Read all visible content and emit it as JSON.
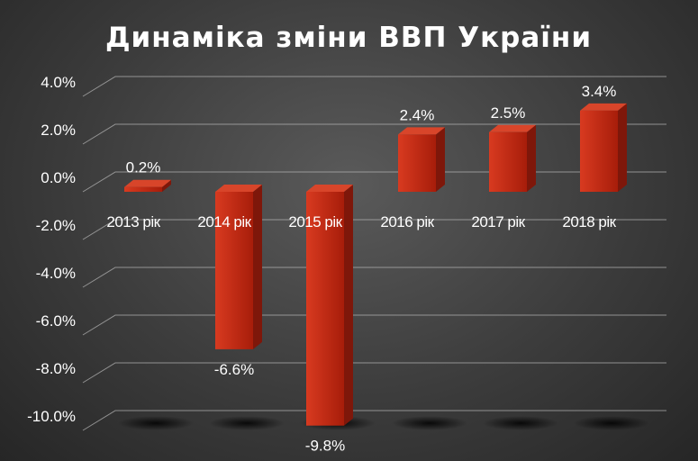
{
  "title": "Динаміка зміни ВВП України",
  "colors": {
    "bar_front": "#c0270f",
    "bar_side": "#7e170a",
    "bar_top": "#d8452a",
    "grid": "#b0b0b0",
    "text": "#ffffff"
  },
  "chart_data": {
    "type": "bar",
    "title": "Динаміка зміни ВВП України",
    "categories": [
      "2013 рік",
      "2014 рік",
      "2015 рік",
      "2016 рік",
      "2017 рік",
      "2018 рік"
    ],
    "values": [
      0.2,
      -6.6,
      -9.8,
      2.4,
      2.5,
      3.4
    ],
    "data_labels": [
      "0.2%",
      "-6.6%",
      "-9.8%",
      "2.4%",
      "2.5%",
      "3.4%"
    ],
    "yticks": [
      "4.0%",
      "2.0%",
      "0.0%",
      "-2.0%",
      "-4.0%",
      "-6.0%",
      "-8.0%",
      "-10.0%"
    ],
    "ytick_values": [
      4,
      2,
      0,
      -2,
      -4,
      -6,
      -8,
      -10
    ],
    "ylim": [
      -10,
      4
    ],
    "grid": true,
    "style": "3d-column"
  }
}
